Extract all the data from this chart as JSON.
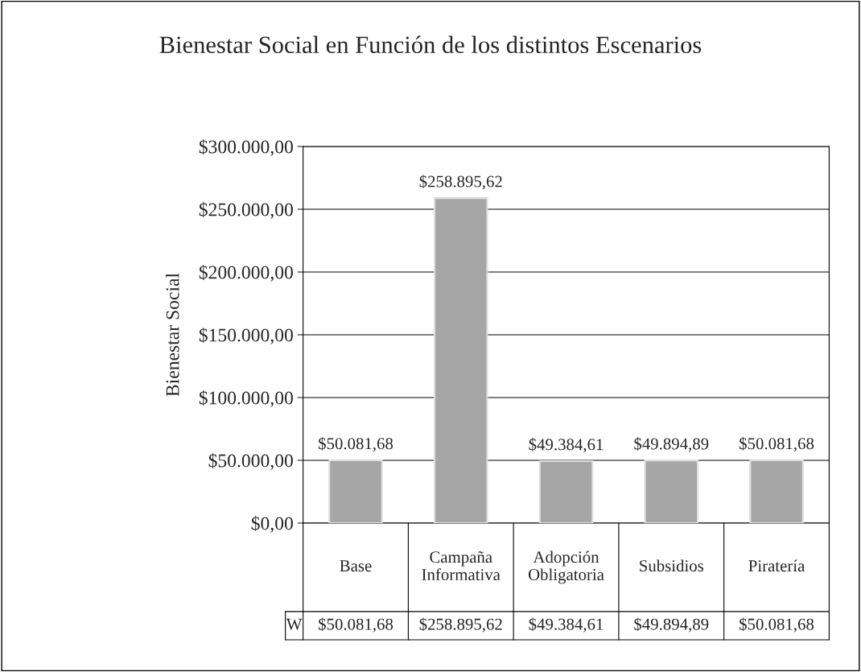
{
  "chart_data": {
    "type": "bar",
    "title": "Bienestar Social en Función de los distintos Escenarios",
    "ylabel": "Bienestar Social",
    "categories": [
      "Base",
      "Campaña Informativa",
      "Adopción Obligatoria",
      "Subsidios",
      "Piratería"
    ],
    "series": [
      {
        "name": "W",
        "color": "#a6a6a6",
        "values": [
          50081.68,
          258895.62,
          49384.61,
          49894.89,
          50081.68
        ],
        "value_labels": [
          "$50.081,68",
          "$258.895,62",
          "$49.384,61",
          "$49.894,89",
          "$50.081,68"
        ]
      }
    ],
    "ylim": [
      0,
      300000
    ],
    "yticks": [
      {
        "value": 0,
        "label": "$0,00"
      },
      {
        "value": 50000,
        "label": "$50.000,00"
      },
      {
        "value": 100000,
        "label": "$100.000,00"
      },
      {
        "value": 150000,
        "label": "$150.000,00"
      },
      {
        "value": 200000,
        "label": "$200.000,00"
      },
      {
        "value": 250000,
        "label": "$250.000,00"
      },
      {
        "value": 300000,
        "label": "$300.000,00"
      }
    ],
    "grid": "y",
    "legend": false
  }
}
